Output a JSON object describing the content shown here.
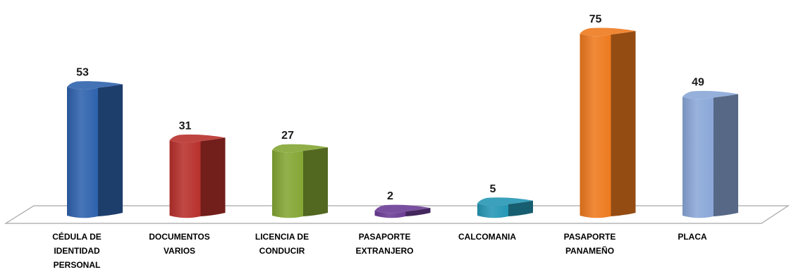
{
  "chart_data": {
    "type": "bar",
    "categories": [
      "CÉDULA DE IDENTIDAD PERSONAL",
      "DOCUMENTOS VARIOS",
      "LICENCIA DE CONDUCIR",
      "PASAPORTE EXTRANJERO",
      "CALCOMANIA",
      "PASAPORTE PANAMEÑO",
      "PLACA"
    ],
    "category_lines": [
      [
        "CÉDULA DE",
        "IDENTIDAD",
        "PERSONAL"
      ],
      [
        "DOCUMENTOS",
        "VARIOS"
      ],
      [
        "LICENCIA DE",
        "CONDUCIR"
      ],
      [
        "PASAPORTE",
        "EXTRANJERO"
      ],
      [
        "CALCOMANIA"
      ],
      [
        "PASAPORTE",
        "PANAMEÑO"
      ],
      [
        "PLACA"
      ]
    ],
    "values": [
      53,
      31,
      27,
      2,
      5,
      75,
      49
    ],
    "value_labels": [
      "53",
      "31",
      "27",
      "2",
      "5",
      "75",
      "49"
    ],
    "colors": [
      "#2e62ad",
      "#b8302c",
      "#84a634",
      "#6a3d94",
      "#2597b5",
      "#ee7a1e",
      "#8aa7d8"
    ],
    "ylim": [
      0,
      75
    ],
    "grid": false,
    "legend": "none",
    "style": "3d-cylinder-columns"
  }
}
